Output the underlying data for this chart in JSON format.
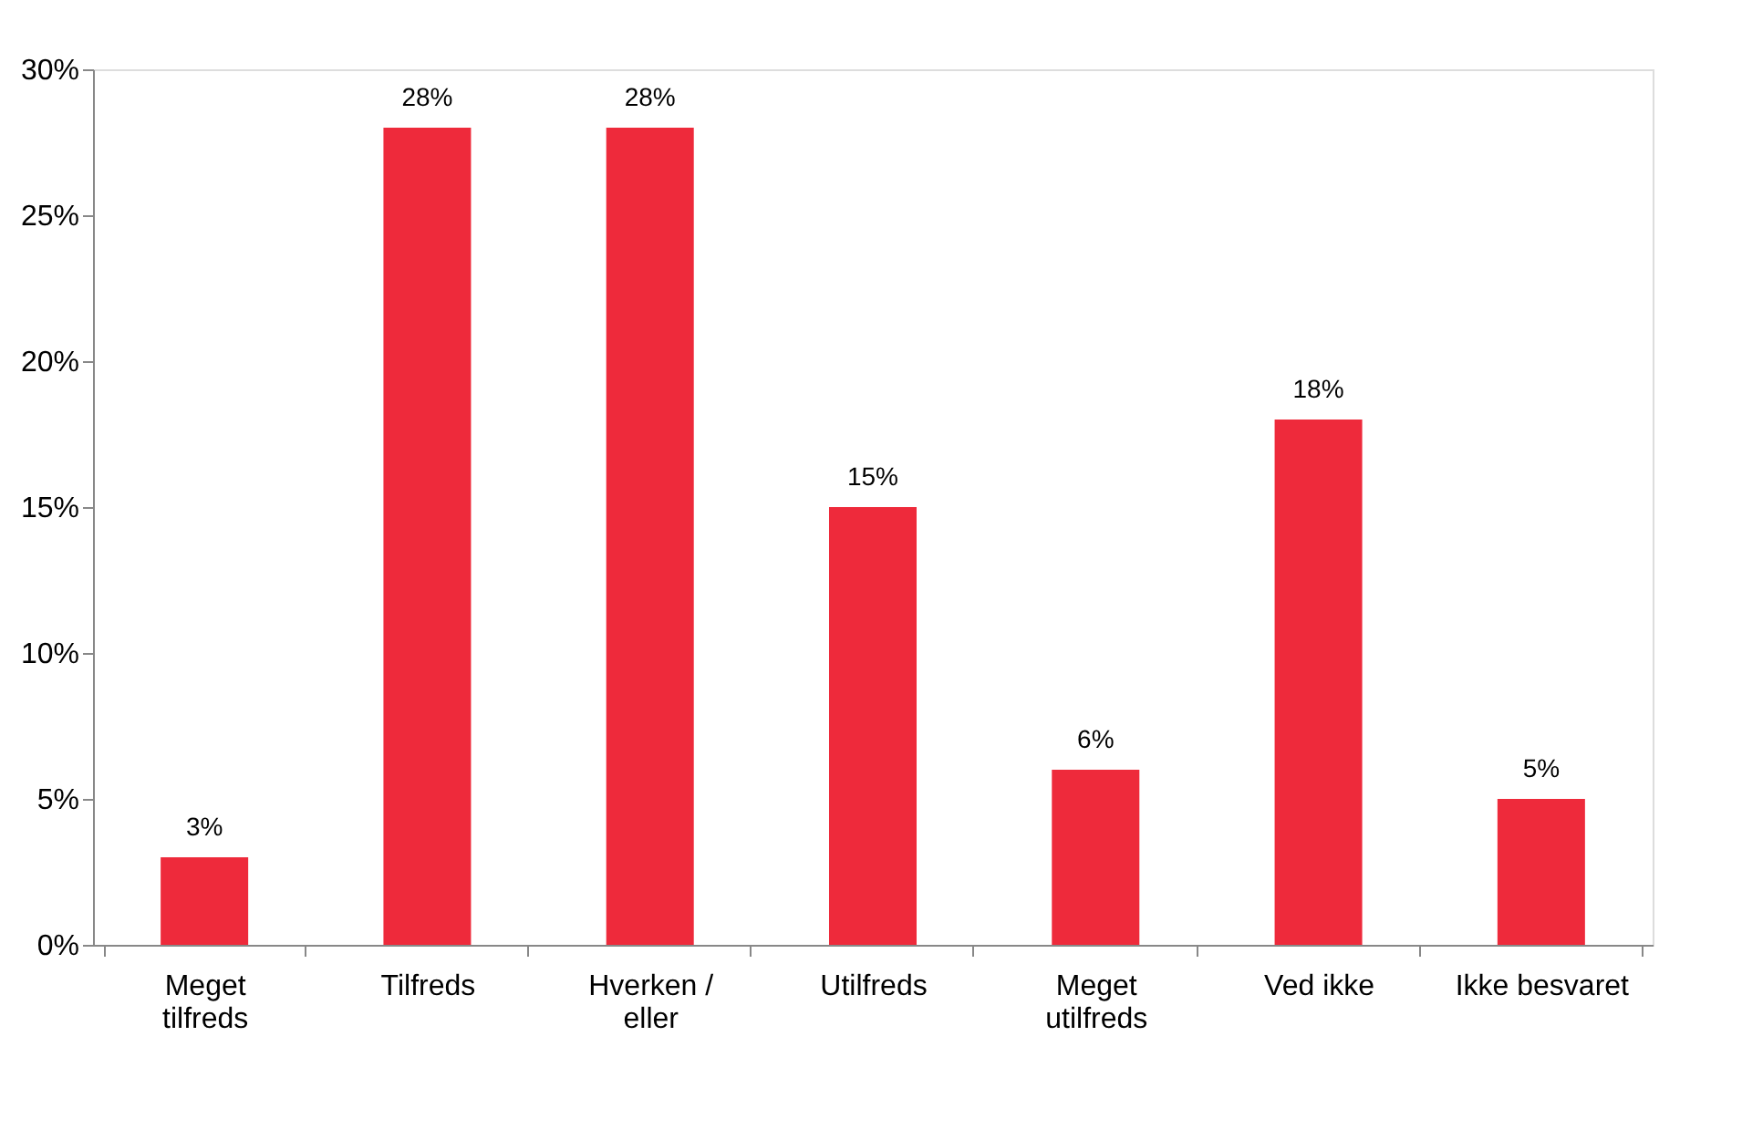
{
  "chart_data": {
    "type": "bar",
    "categories": [
      "Meget tilfreds",
      "Tilfreds",
      "Hverken / eller",
      "Utilfreds",
      "Meget utilfreds",
      "Ved ikke",
      "Ikke besvaret"
    ],
    "values": [
      3,
      28,
      28,
      15,
      6,
      18,
      5
    ],
    "value_labels": [
      "3%",
      "28%",
      "28%",
      "15%",
      "6%",
      "18%",
      "5%"
    ],
    "color": "#ee2a3b",
    "ylim": [
      0,
      30
    ],
    "yticks": [
      {
        "value": 0,
        "label": "0%"
      },
      {
        "value": 5,
        "label": "5%"
      },
      {
        "value": 10,
        "label": "10%"
      },
      {
        "value": 15,
        "label": "15%"
      },
      {
        "value": 20,
        "label": "20%"
      },
      {
        "value": 25,
        "label": "25%"
      },
      {
        "value": 30,
        "label": "30%"
      }
    ],
    "grid": false
  }
}
